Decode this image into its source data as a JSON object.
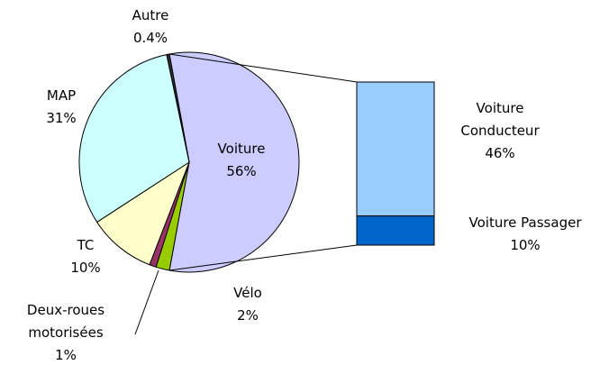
{
  "chart_data": {
    "type": "pie-of-bar",
    "categories": [
      "Voiture",
      "Vélo",
      "Deux-roues motorisées",
      "TC",
      "MAP",
      "Autre"
    ],
    "values": [
      56,
      2,
      1,
      10,
      31,
      0.4
    ],
    "value_labels": [
      "56%",
      "2%",
      "1%",
      "10%",
      "31%",
      "0.4%"
    ],
    "colors": [
      "#ccccff",
      "#99cc00",
      "#993366",
      "#ffffcc",
      "#ccffff",
      "#333333"
    ],
    "bar": {
      "categories": [
        "Voiture Conducteur",
        "Voiture Passager"
      ],
      "values": [
        46,
        10
      ],
      "value_labels": [
        "46%",
        "10%"
      ],
      "colors": [
        "#99ccff",
        "#0066cc"
      ]
    }
  }
}
